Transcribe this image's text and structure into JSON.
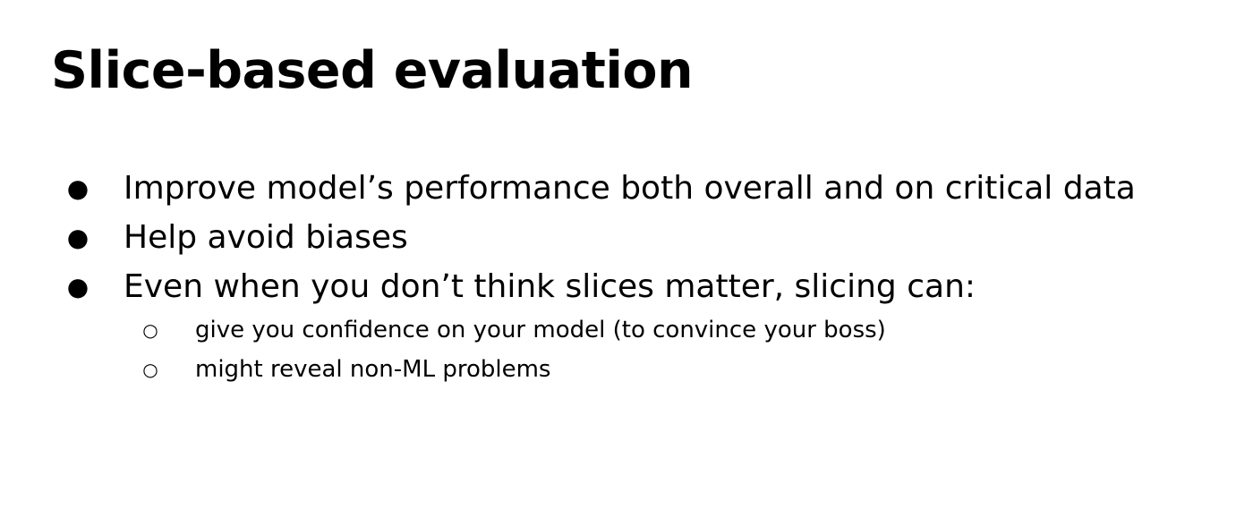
{
  "slide": {
    "title": "Slice-based evaluation",
    "bullets": [
      {
        "marker": "●",
        "text": "Improve model’s performance both overall and on critical data"
      },
      {
        "marker": "●",
        "text": "Help avoid biases"
      },
      {
        "marker": "●",
        "text": "Even when you don’t think slices matter, slicing can:"
      }
    ],
    "sub_bullets": [
      {
        "marker": "○",
        "text": "give you confidence on your model (to convince your boss)"
      },
      {
        "marker": "○",
        "text": "might reveal non-ML problems"
      }
    ]
  }
}
